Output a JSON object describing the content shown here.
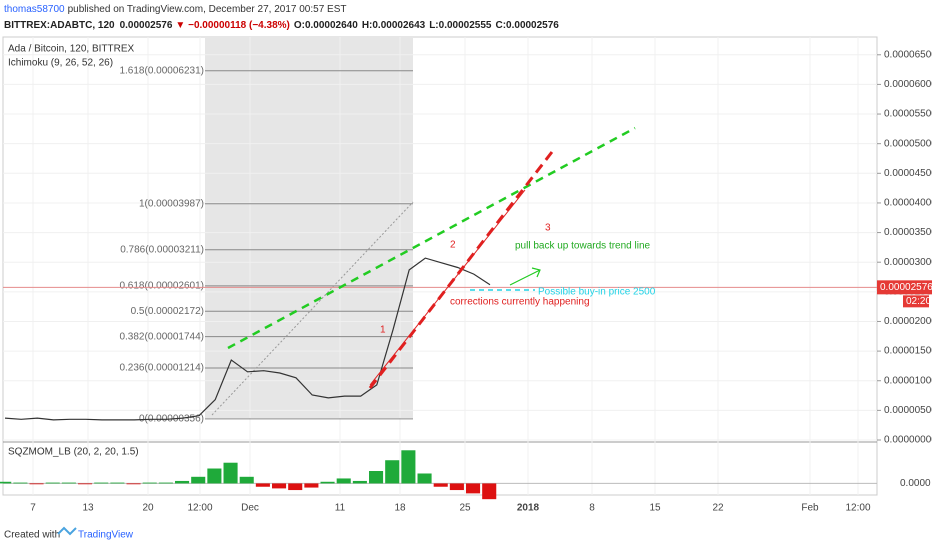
{
  "header": {
    "publisher": "thomas58700",
    "published": "published on TradingView.com, December 27, 2017 00:57 EST",
    "symbol": "BITTREX:ADABTC, 120",
    "price": "0.00002576",
    "change": "▼ −0.00000118 (−4.38%)",
    "open": "O:0.00002640",
    "high": "H:0.00002643",
    "low": "L:0.00002555",
    "close": "C:0.00002576"
  },
  "chart_data": {
    "type": "line",
    "title": "Ada / Bitcoin, 120, BITTREX",
    "indicator": "Ichimoku (9, 26, 52, 26)",
    "color": "#333333",
    "values": [
      3.7e-06,
      3.5e-06,
      3.7e-06,
      3.4e-06,
      3.5e-06,
      3.5e-06,
      3.4e-06,
      3.4e-06,
      3.4e-06,
      3.5e-06,
      3.5e-06,
      3.7e-06,
      4.1e-06,
      6.8e-06,
      1.35e-05,
      1.15e-05,
      1.17e-05,
      1.13e-05,
      1.05e-05,
      7.6e-06,
      7.1e-06,
      7.4e-06,
      7.4e-06,
      9.3e-06,
      1.86e-05,
      2.87e-05,
      3.07e-05,
      2.99e-05,
      2.91e-05,
      2.8e-05,
      2.62e-05
    ],
    "ylim": [
      0,
      6.8e-05
    ],
    "yticks": [
      {
        "value": 0,
        "label": "0.00000000"
      },
      {
        "value": 5e-06,
        "label": "0.00000500"
      },
      {
        "value": 1e-05,
        "label": "0.00001000"
      },
      {
        "value": 1.5e-05,
        "label": "0.00001500"
      },
      {
        "value": 2e-05,
        "label": "0.00002000"
      },
      {
        "value": 2.5e-05,
        "label": "0.00002500"
      },
      {
        "value": 3e-05,
        "label": "0.00003000"
      },
      {
        "value": 3.5e-05,
        "label": "0.00003500"
      },
      {
        "value": 4e-05,
        "label": "0.00004000"
      },
      {
        "value": 4.5e-05,
        "label": "0.00004500"
      },
      {
        "value": 5e-05,
        "label": "0.00005000"
      },
      {
        "value": 5.5e-05,
        "label": "0.00005500"
      },
      {
        "value": 6e-05,
        "label": "0.00006000"
      },
      {
        "value": 6.5e-05,
        "label": "0.00006500"
      }
    ],
    "x_labels": [
      "7",
      "13",
      "20",
      "12:00",
      "Dec",
      "11",
      "18",
      "25",
      "2018",
      "8",
      "15",
      "22",
      "Feb",
      "12:00"
    ],
    "grid": true,
    "last_price": 2.576e-05,
    "countdown": "02:20",
    "fib_levels": [
      {
        "label": "1.618(0.00006231)",
        "value": 6.231e-05
      },
      {
        "label": "1(0.00003987)",
        "value": 3.987e-05
      },
      {
        "label": "0.786(0.00003211)",
        "value": 3.211e-05
      },
      {
        "label": "0.618(0.00002601)",
        "value": 2.601e-05
      },
      {
        "label": "0.5(0.00002172)",
        "value": 2.172e-05
      },
      {
        "label": "0.382(0.00001744)",
        "value": 1.744e-05
      },
      {
        "label": "0.236(0.00001214)",
        "value": 1.214e-05
      },
      {
        "label": "0(0.00000356)",
        "value": 3.56e-06
      }
    ],
    "annotations": [
      "1",
      "2",
      "3",
      "pull back up towards trend line",
      "Possible buy-in price 2500",
      "corrections currently happening"
    ],
    "momentum": {
      "title": "SQZMOM_LB (20, 2, 20, 1.5)",
      "ylim": [
        -2e-06,
        5e-06
      ],
      "yticks": [
        {
          "value": 0,
          "label": "0.0000"
        }
      ],
      "values": [
        2e-07,
        1e-07,
        -1e-07,
        1e-07,
        1e-07,
        -1e-07,
        1e-07,
        1e-07,
        -1e-07,
        1e-07,
        1e-07,
        3e-07,
        8e-07,
        1.8e-06,
        2.5e-06,
        8e-07,
        -4e-07,
        -6e-07,
        -8e-07,
        -5e-07,
        2e-07,
        6e-07,
        3e-07,
        1.5e-06,
        2.8e-06,
        4e-06,
        1.2e-06,
        -4e-07,
        -8e-07,
        -1.2e-06,
        -1.9e-06
      ]
    }
  },
  "footer": {
    "created": "Created with",
    "brand": "TradingView"
  }
}
